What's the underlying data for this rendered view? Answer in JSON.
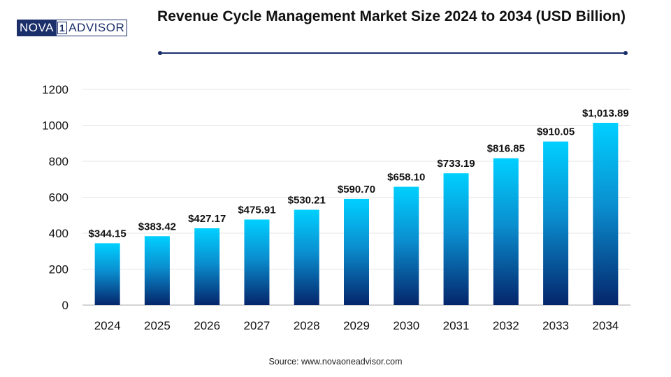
{
  "logo": {
    "part1": "NOVA",
    "part2": "1",
    "part3": "ADVISOR"
  },
  "source": "Source: www.novaoneadvisor.com",
  "colors": {
    "bar_top": "#00d0ff",
    "bar_bottom": "#05256b",
    "title_rule": "#1b2f6b",
    "grid": "#e6e6e6",
    "axis": "#bbbbbb"
  },
  "chart_data": {
    "type": "bar",
    "title": "Revenue Cycle Management Market Size 2024 to 2034 (USD Billion)",
    "xlabel": "",
    "ylabel": "",
    "ylim": [
      0,
      1200
    ],
    "yticks": [
      "0",
      "200",
      "400",
      "600",
      "800",
      "1000",
      "1200"
    ],
    "categories": [
      "2024",
      "2025",
      "2026",
      "2027",
      "2028",
      "2029",
      "2030",
      "2031",
      "2032",
      "2033",
      "2034"
    ],
    "values": [
      344.15,
      383.42,
      427.17,
      475.91,
      530.21,
      590.7,
      658.1,
      733.19,
      816.85,
      910.05,
      1013.89
    ],
    "data_labels": [
      "$344.15",
      "$383.42",
      "$427.17",
      "$475.91",
      "$530.21",
      "$590.70",
      "$658.10",
      "$733.19",
      "$816.85",
      "$910.05",
      "$1,013.89"
    ],
    "grid": true,
    "legend": "none"
  }
}
